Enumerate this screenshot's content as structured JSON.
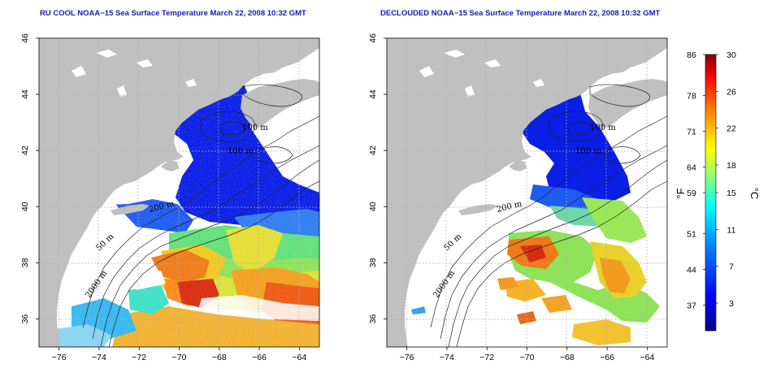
{
  "panels": [
    {
      "id": "left",
      "title": "RU COOL NOAA−15 Sea Surface Temperature March 22, 2008 10:32 GMT",
      "contour_labels": [
        "100 m",
        "100 m",
        "200 m",
        "50 m",
        "2000 m"
      ]
    },
    {
      "id": "right",
      "title": "DECLOUDED NOAA−15 Sea Surface Temperature March 22, 2008 10:32 GMT",
      "contour_labels": [
        "100 m",
        "100 m",
        "200 m",
        "50 m",
        "2000 m"
      ]
    }
  ],
  "axes": {
    "lon_ticks": [
      "−76",
      "−74",
      "−72",
      "−70",
      "−68",
      "−66",
      "−64"
    ],
    "lat_ticks": [
      "36",
      "38",
      "40",
      "42",
      "44",
      "46"
    ],
    "lon_range": [
      -77,
      -63
    ],
    "lat_range": [
      35,
      46
    ]
  },
  "colorbar": {
    "fahrenheit_label": "°F",
    "celsius_label": "°C",
    "fahrenheit_ticks": [
      "86",
      "78",
      "71",
      "64",
      "59",
      "51",
      "44",
      "37"
    ],
    "celsius_ticks": [
      "30",
      "26",
      "22",
      "18",
      "15",
      "11",
      "7",
      "3"
    ],
    "range_celsius": [
      0,
      30
    ],
    "colors": [
      "#00008f",
      "#0000ff",
      "#0080ff",
      "#00ffff",
      "#80ff80",
      "#ffff00",
      "#ff8000",
      "#ff0000",
      "#800000"
    ]
  },
  "colors": {
    "land": "#c0c0c0",
    "cloud": "#ffffff",
    "title": "#1a1ab0"
  }
}
